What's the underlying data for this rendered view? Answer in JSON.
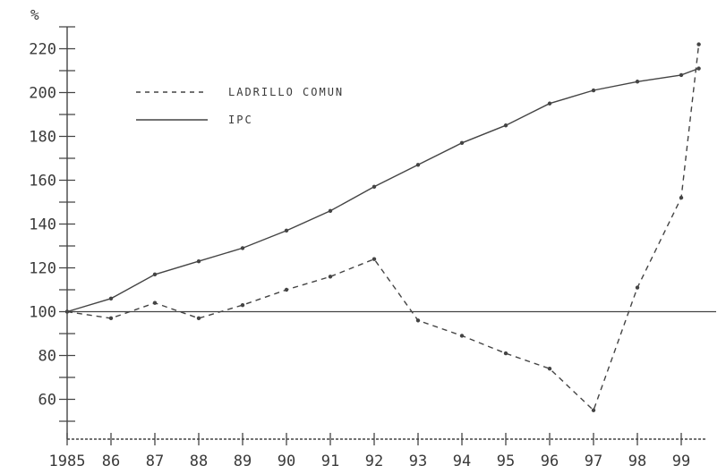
{
  "chart_data": {
    "type": "line",
    "title": "",
    "ylabel": "%",
    "xlabel": "",
    "categories": [
      "1985",
      "86",
      "87",
      "88",
      "89",
      "90",
      "91",
      "92",
      "93",
      "94",
      "95",
      "96",
      "97",
      "98",
      "99"
    ],
    "x": [
      1985,
      1986,
      1987,
      1988,
      1989,
      1990,
      1991,
      1992,
      1993,
      1994,
      1995,
      1996,
      1997,
      1998,
      1999
    ],
    "ylim": [
      40,
      230
    ],
    "yticks": [
      60,
      80,
      100,
      120,
      140,
      160,
      180,
      200,
      220
    ],
    "y_tick_labels": [
      "60",
      "80",
      "100",
      "120",
      "140",
      "160",
      "180",
      "200",
      "220"
    ],
    "reference_line": 100,
    "grid": false,
    "legend_position": "top-left",
    "series": [
      {
        "name": "LADRILLO COMUN",
        "style": "dashed",
        "color": "#444444",
        "x": [
          1985,
          1986,
          1987,
          1988,
          1989,
          1990,
          1991,
          1992,
          1993,
          1994,
          1995,
          1996,
          1997,
          1998,
          1999,
          1999.4
        ],
        "values": [
          100,
          97,
          104,
          97,
          103,
          110,
          116,
          124,
          96,
          89,
          81,
          74,
          55,
          111,
          152,
          222
        ]
      },
      {
        "name": "IPC",
        "style": "solid",
        "color": "#444444",
        "x": [
          1985,
          1986,
          1987,
          1988,
          1989,
          1990,
          1991,
          1992,
          1993,
          1994,
          1995,
          1996,
          1997,
          1998,
          1999,
          1999.4
        ],
        "values": [
          100,
          106,
          117,
          123,
          129,
          137,
          146,
          157,
          167,
          177,
          185,
          195,
          201,
          205,
          208,
          211
        ]
      }
    ]
  }
}
